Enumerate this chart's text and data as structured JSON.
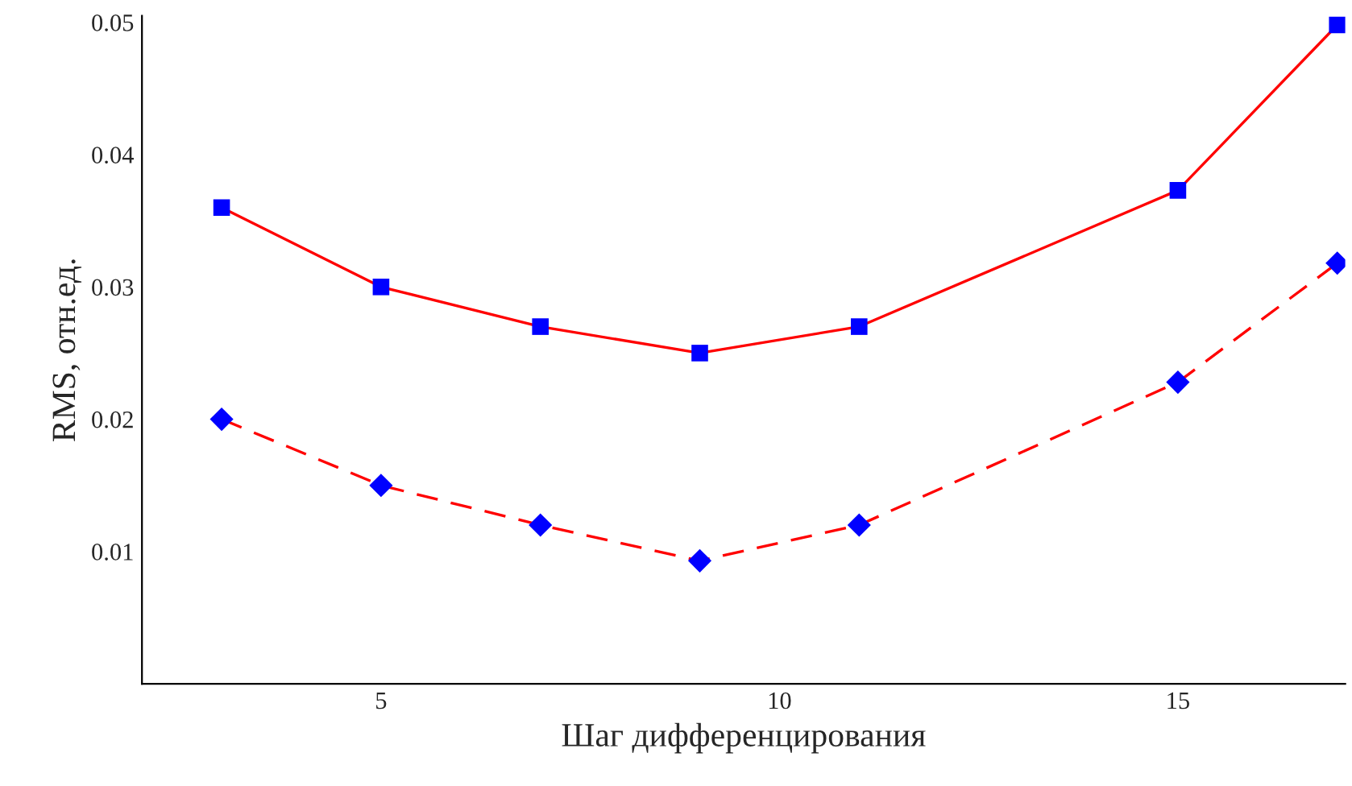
{
  "chart_data": {
    "type": "line",
    "xlabel": "Шаг дифференцирования",
    "ylabel": "RMS, отн.ед.",
    "x": [
      3,
      5,
      7,
      9,
      11,
      15,
      17
    ],
    "series": [
      {
        "color": "#ff0000",
        "colors": [
          "#0000ff",
          "#0000ff",
          "#0000ff",
          "#0000ff",
          "#0000ff",
          "#0000ff",
          "#0000ff"
        ],
        "marker": "square",
        "line_style": "solid",
        "values": [
          0.036,
          0.03,
          0.027,
          0.025,
          0.027,
          0.0373,
          0.0498
        ]
      },
      {
        "color": "#ff0000",
        "colors": [
          "#0000ff",
          "#0000ff",
          "#0000ff",
          "#0000ff",
          "#0000ff",
          "#0000ff",
          "#0000ff"
        ],
        "marker": "diamond",
        "line_style": "dashed",
        "values": [
          0.02,
          0.015,
          0.012,
          0.0093,
          0.012,
          0.0228,
          0.0318
        ]
      }
    ],
    "xlim": [
      2,
      17.1
    ],
    "ylim": [
      0,
      0.0505
    ],
    "xticks": [
      5,
      10,
      15
    ],
    "yticks": [
      0.01,
      0.02,
      0.03,
      0.04,
      0.05
    ],
    "grid": false,
    "legend": false
  }
}
